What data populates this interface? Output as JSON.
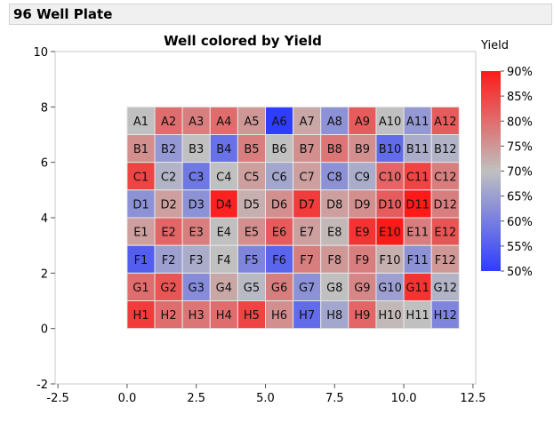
{
  "header": {
    "title": "96 Well Plate"
  },
  "chart_data": {
    "type": "heatmap",
    "title": "Well colored by Yield",
    "xlim": [
      -2.6,
      12.6
    ],
    "ylim": [
      -2,
      10
    ],
    "xticks": [
      -2.5,
      0,
      2.5,
      5,
      7.5,
      10,
      12.5
    ],
    "xtick_labels": [
      "-2.5",
      "0.0",
      "2.5",
      "5.0",
      "7.5",
      "10.0",
      "12.5"
    ],
    "yticks": [
      -2,
      0,
      2,
      4,
      6,
      8,
      10
    ],
    "ytick_labels": [
      "-2",
      "0",
      "2",
      "4",
      "6",
      "8",
      "10"
    ],
    "grid": false,
    "legend": {
      "title": "Yield",
      "placement": "right",
      "ticks": [
        "90%",
        "85%",
        "80%",
        "75%",
        "70%",
        "65%",
        "60%",
        "55%",
        "50%"
      ],
      "range": [
        50,
        90
      ],
      "colors": {
        "low": "#2f3dff",
        "mid": "#c0c0c0",
        "high": "#ff1a1a"
      }
    },
    "rows": [
      "A",
      "B",
      "C",
      "D",
      "E",
      "F",
      "G",
      "H"
    ],
    "columns": [
      1,
      2,
      3,
      4,
      5,
      6,
      7,
      8,
      9,
      10,
      11,
      12
    ],
    "yield": [
      [
        70,
        80,
        78,
        80,
        75,
        50,
        73,
        63,
        82,
        70,
        64,
        82
      ],
      [
        76,
        64,
        70,
        58,
        78,
        70,
        76,
        79,
        76,
        57,
        67,
        68
      ],
      [
        85,
        68,
        59,
        70,
        74,
        66,
        74,
        63,
        67,
        81,
        85,
        78
      ],
      [
        63,
        74,
        63,
        89,
        72,
        76,
        86,
        74,
        76,
        82,
        90,
        78
      ],
      [
        74,
        81,
        78,
        70,
        76,
        82,
        74,
        71,
        87,
        90,
        78,
        83
      ],
      [
        55,
        65,
        67,
        70,
        61,
        56,
        78,
        75,
        78,
        72,
        63,
        75
      ],
      [
        80,
        83,
        62,
        73,
        69,
        78,
        63,
        70,
        77,
        65,
        87,
        68
      ],
      [
        86,
        80,
        79,
        80,
        85,
        76,
        57,
        66,
        81,
        71,
        70,
        61
      ]
    ]
  }
}
